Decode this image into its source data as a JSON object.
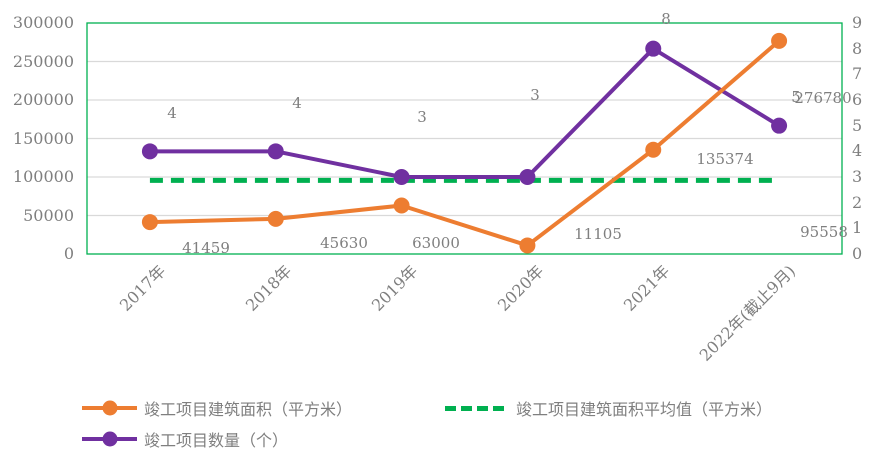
{
  "chart_data": {
    "type": "line",
    "categories": [
      "2017年",
      "2018年",
      "2019年",
      "2020年",
      "2021年",
      "2022年(截止9月)"
    ],
    "series": [
      {
        "name": "竣工项目建筑面积（平方米）",
        "axis": "left",
        "color": "#ED7D31",
        "style": "solid",
        "marker": "circle",
        "values": [
          41459,
          45630,
          63000,
          11105,
          135374,
          276780
        ],
        "data_labels": [
          "41459",
          "45630",
          "63000",
          "11105",
          "135374",
          "276780"
        ]
      },
      {
        "name": "竣工项目数量（个）",
        "axis": "right",
        "color": "#7030A0",
        "style": "solid",
        "marker": "circle",
        "values": [
          4,
          4,
          3,
          3,
          8,
          5
        ],
        "data_labels": [
          "4",
          "4",
          "3",
          "3",
          "8",
          "5"
        ]
      },
      {
        "name": "竣工项目建筑面积平均值（平方米）",
        "axis": "left",
        "color": "#00B050",
        "style": "dashed",
        "marker": "none",
        "values": [
          95558,
          95558,
          95558,
          95558,
          95558,
          95558
        ],
        "data_labels": [
          "",
          "",
          "",
          "",
          "",
          "95558"
        ]
      }
    ],
    "average_value": 95558,
    "left_axis": {
      "min": 0,
      "max": 300000,
      "step": 50000,
      "tick_labels": [
        "0",
        "50000",
        "100000",
        "150000",
        "200000",
        "250000",
        "300000"
      ]
    },
    "right_axis": {
      "min": 0,
      "max": 9,
      "step": 1,
      "tick_labels": [
        "0",
        "1",
        "2",
        "3",
        "4",
        "5",
        "6",
        "7",
        "8",
        "9"
      ]
    },
    "grid": "horizontal",
    "x_tick_rotation_deg": 45,
    "legend_position": "bottom-left",
    "colors": {
      "axis_text": "#7f7f7f",
      "data_label_text": "#7f7f7f",
      "gridline": "#D9D9D9",
      "plot_border": "#00B050",
      "background": "#FFFFFF"
    }
  },
  "legend": {
    "items": [
      {
        "label": "竣工项目建筑面积（平方米）",
        "color": "#ED7D31",
        "style": "line-marker"
      },
      {
        "label": "竣工项目建筑面积平均值（平方米）",
        "color": "#00B050",
        "style": "dashed"
      },
      {
        "label": "竣工项目数量（个）",
        "color": "#7030A0",
        "style": "line-marker"
      }
    ]
  }
}
